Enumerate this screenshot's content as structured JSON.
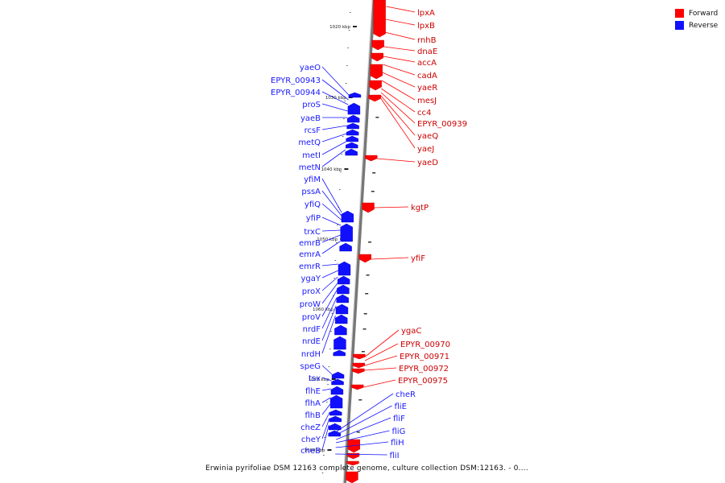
{
  "legend": {
    "forward": {
      "label": "Forward",
      "color": "#ff0000"
    },
    "reverse": {
      "label": "Reverse",
      "color": "#1010ff"
    }
  },
  "caption": "Erwinia pyrifoliae DSM 12163 complete genome, culture collection DSM:12163. - 0....",
  "scale_marks": [
    "1020 kbp",
    "1030 kbp",
    "1040 kbp",
    "1050 kbp",
    "1060 kbp",
    "1070 kbp",
    "1080 kbp"
  ],
  "genes_forward": [
    "lpxA",
    "lpxB",
    "rnhB",
    "dnaE",
    "accA",
    "cadA",
    "yaeR",
    "mesJ",
    "cc4",
    "EPYR_00939",
    "yaeQ",
    "yaeJ",
    "yaeD",
    "kgtP",
    "yfiF",
    "ygaC",
    "EPYR_00970",
    "EPYR_00971",
    "EPYR_00972",
    "EPYR_00975"
  ],
  "genes_reverse": [
    "yaeO",
    "EPYR_00943",
    "EPYR_00944",
    "proS",
    "yaeB",
    "rcsF",
    "metQ",
    "metI",
    "metN",
    "yfiM",
    "pssA",
    "yfiQ",
    "yfiP",
    "trxC",
    "emrB",
    "emrA",
    "emrR",
    "ygaY",
    "proX",
    "proW",
    "proV",
    "nrdF",
    "nrdE",
    "nrdH",
    "speG",
    "tsx",
    "flhE",
    "flhA",
    "flhB",
    "cheZ",
    "cheY",
    "cheB",
    "cheR",
    "fliE",
    "fliF",
    "fliG",
    "fliH",
    "fliI"
  ]
}
